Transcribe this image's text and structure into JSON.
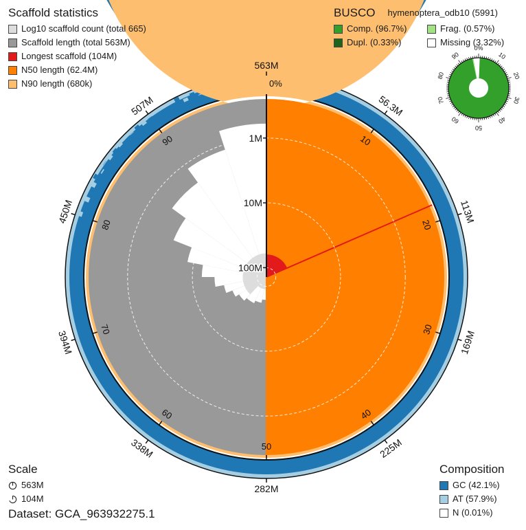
{
  "legend": {
    "stats_title": "Scaffold statistics",
    "count": "Log10 scaffold count (total 665)",
    "length": "Scaffold length (total 563M)",
    "longest": "Longest scaffold (104M)",
    "n50": "N50 length (62.4M)",
    "n90": "N90 length (680k)",
    "busco_title": "BUSCO",
    "busco_lineage": "hymenoptera_odb10 (5991)",
    "comp": "Comp. (96.7%)",
    "frag": "Frag. (0.57%)",
    "dupl": "Dupl. (0.33%)",
    "missing": "Missing (3.32%)",
    "scale_title": "Scale",
    "scale_total": "563M",
    "scale_longest": "104M",
    "comp_title": "Composition",
    "gc": "GC (42.1%)",
    "at": "AT (57.9%)",
    "n": "N (0.01%)",
    "dataset": "Dataset: GCA_963932275.1"
  },
  "colors": {
    "scaffold_length": "#999999",
    "scaffold_count": "#dddddd",
    "longest": "#e31a1c",
    "n50": "#ff7f00",
    "n90": "#fdbf6f",
    "gc": "#1f78b4",
    "at": "#a6cee3",
    "busco_complete": "#33a02c",
    "busco_duplicated": "#20641c",
    "busco_fragmented": "#a3e283",
    "busco_missing": "#ffffff"
  },
  "chart_data": {
    "type": "snail",
    "assembly_span": 563,
    "assembly_span_unit": "M",
    "scaffold_count_total": 665,
    "longest_scaffold_mb": 104,
    "n50_mb": 62.4,
    "n90_kb": 680,
    "gc_percent": 42.1,
    "at_percent": 57.9,
    "n_percent": 0.01,
    "outer_ticks": [
      "0%",
      "56.3M",
      "113M",
      "169M",
      "225M",
      "282M",
      "338M",
      "394M",
      "450M",
      "507M",
      "563M"
    ],
    "percent_ticks": [
      "10",
      "20",
      "30",
      "40",
      "50",
      "60",
      "70",
      "80",
      "90"
    ],
    "radial_scale_labels": [
      "1M",
      "10M",
      "100M"
    ],
    "radial_scale_values_mb": [
      1,
      10,
      100
    ],
    "busco": {
      "lineage": "hymenoptera_odb10",
      "total": 5991,
      "complete": 96.7,
      "duplicated": 0.33,
      "fragmented": 0.57,
      "missing": 3.32,
      "ticks": [
        "0%",
        "10",
        "20",
        "30",
        "40",
        "50",
        "60",
        "70",
        "80",
        "90"
      ]
    }
  }
}
